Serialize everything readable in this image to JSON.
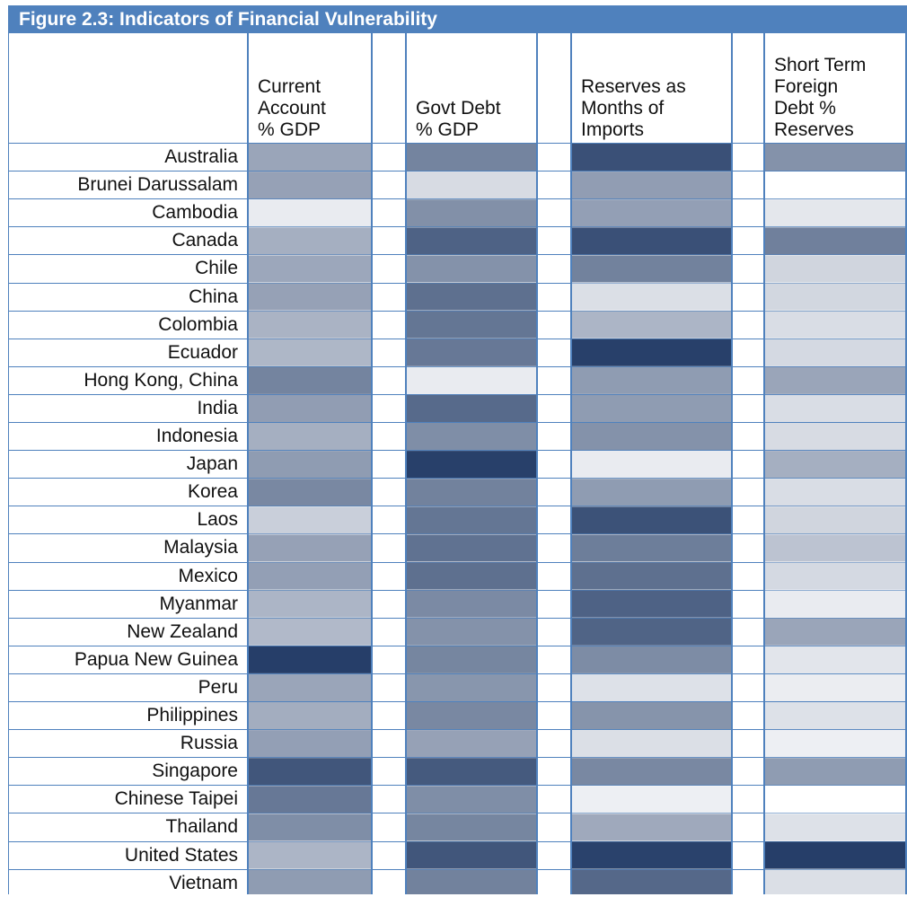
{
  "chart_data": {
    "type": "heatmap",
    "title": "Figure 2.3: Indicators of Financial Vulnerability",
    "columns": [
      "Current\nAccount\n% GDP",
      "Govt Debt\n% GDP",
      "Reserves as\nMonths of\nImports",
      "Short Term\nForeign\nDebt %\nReserves"
    ],
    "rows": [
      "Australia",
      "Brunei Darussalam",
      "Cambodia",
      "Canada",
      "Chile",
      "China",
      "Colombia",
      "Ecuador",
      "Hong Kong, China",
      "India",
      "Indonesia",
      "Japan",
      "Korea",
      "Laos",
      "Malaysia",
      "Mexico",
      "Myanmar",
      "New Zealand",
      "Papua New Guinea",
      "Peru",
      "Philippines",
      "Russia",
      "Singapore",
      "Chinese Taipei",
      "Thailand",
      "United States",
      "Vietnam"
    ],
    "color_scale": {
      "low": "#ffffff",
      "high": "#1f3864"
    },
    "values": [
      [
        0.45,
        0.62,
        0.88,
        0.55
      ],
      [
        0.47,
        0.18,
        0.49,
        0.0
      ],
      [
        0.1,
        0.56,
        0.48,
        0.12
      ],
      [
        0.4,
        0.79,
        0.88,
        0.64
      ],
      [
        0.44,
        0.55,
        0.63,
        0.21
      ],
      [
        0.47,
        0.72,
        0.16,
        0.2
      ],
      [
        0.38,
        0.69,
        0.37,
        0.17
      ],
      [
        0.36,
        0.68,
        0.96,
        0.19
      ],
      [
        0.62,
        0.1,
        0.5,
        0.45
      ],
      [
        0.49,
        0.75,
        0.5,
        0.17
      ],
      [
        0.4,
        0.57,
        0.55,
        0.18
      ],
      [
        0.5,
        0.96,
        0.1,
        0.4
      ],
      [
        0.6,
        0.63,
        0.5,
        0.17
      ],
      [
        0.24,
        0.69,
        0.87,
        0.21
      ],
      [
        0.47,
        0.71,
        0.65,
        0.3
      ],
      [
        0.48,
        0.72,
        0.72,
        0.19
      ],
      [
        0.37,
        0.59,
        0.79,
        0.1
      ],
      [
        0.35,
        0.55,
        0.78,
        0.45
      ],
      [
        0.97,
        0.61,
        0.58,
        0.13
      ],
      [
        0.45,
        0.53,
        0.15,
        0.09
      ],
      [
        0.41,
        0.6,
        0.54,
        0.15
      ],
      [
        0.48,
        0.47,
        0.16,
        0.08
      ],
      [
        0.85,
        0.83,
        0.6,
        0.5
      ],
      [
        0.68,
        0.57,
        0.08,
        0.0
      ],
      [
        0.57,
        0.61,
        0.43,
        0.15
      ],
      [
        0.37,
        0.85,
        0.95,
        0.97
      ],
      [
        0.5,
        0.63,
        0.76,
        0.16
      ]
    ]
  }
}
